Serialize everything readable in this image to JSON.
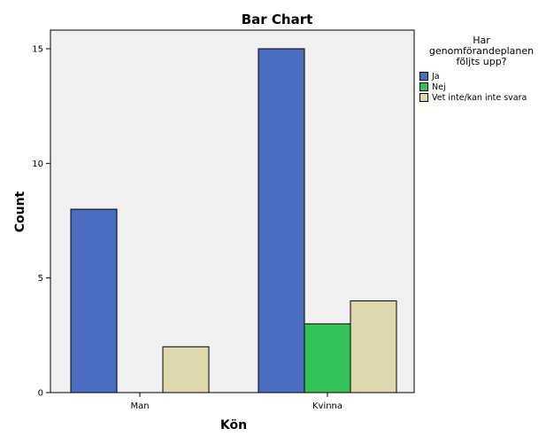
{
  "chart_data": {
    "type": "bar",
    "title": "Bar Chart",
    "xlabel": "Kön",
    "ylabel": "Count",
    "categories": [
      "Man",
      "Kvinna"
    ],
    "series": [
      {
        "name": "Ja",
        "values": [
          8,
          15
        ],
        "color": "#4a6ebf"
      },
      {
        "name": "Nej",
        "values": [
          0,
          3
        ],
        "color": "#33c25a"
      },
      {
        "name": "Vet inte/kan inte svara",
        "values": [
          2,
          4
        ],
        "color": "#ddd9ad"
      }
    ],
    "ylim": [
      0,
      15.0
    ],
    "yticks": [
      0,
      5,
      10,
      15
    ],
    "grid": false,
    "legend_position": "right",
    "legend_title": [
      "Har",
      "genomförandeplanen",
      "följts upp?"
    ],
    "plot_background": "#f0f0f0"
  }
}
